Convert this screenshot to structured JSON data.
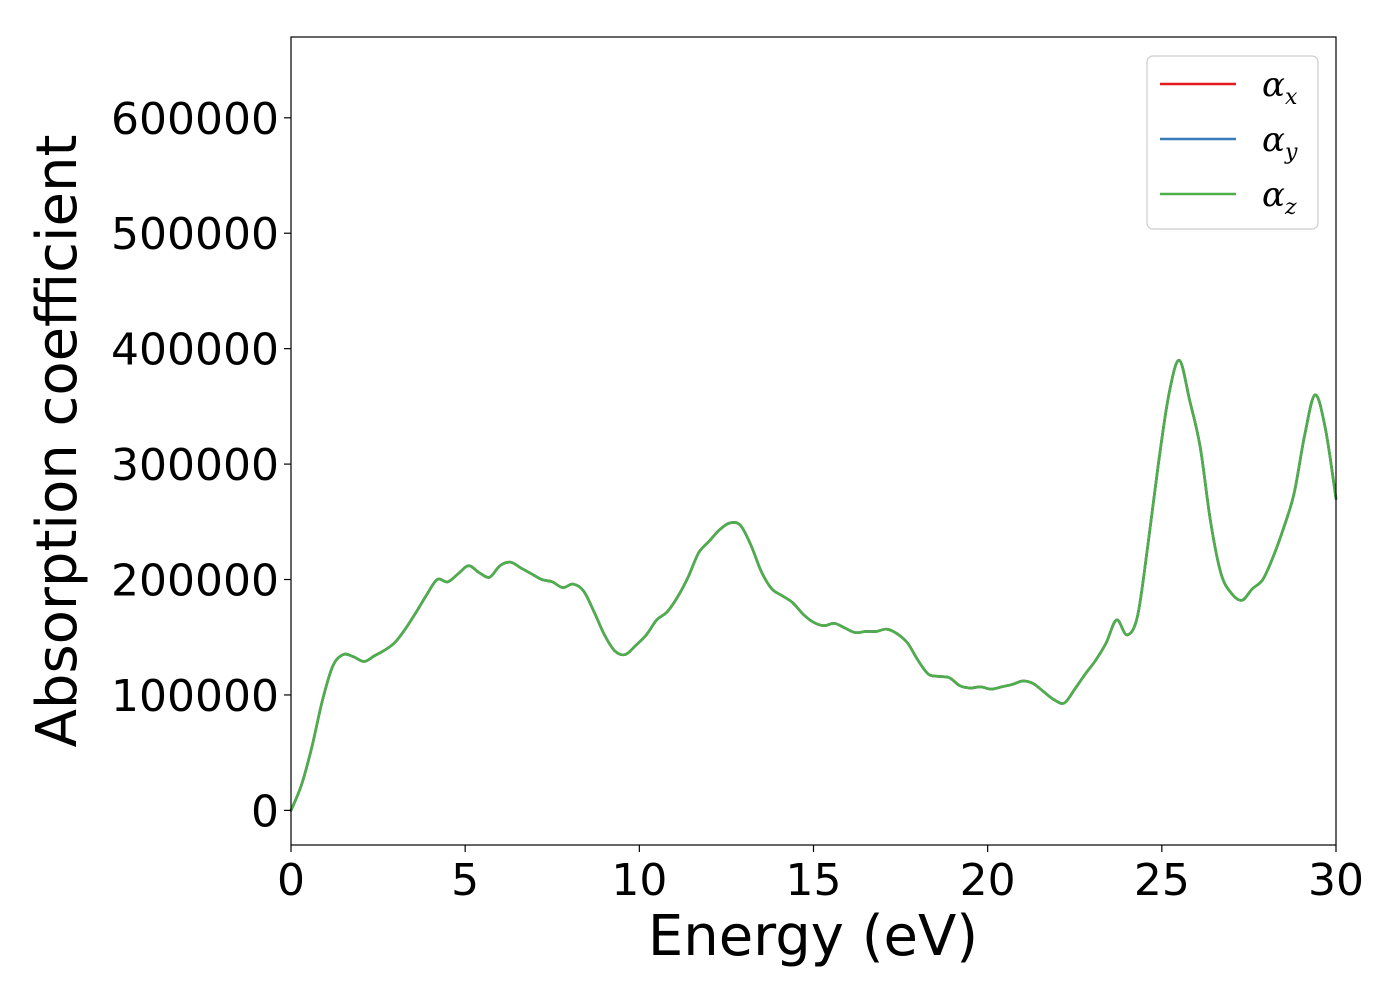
{
  "chart_data": {
    "type": "line",
    "title": "",
    "xlabel": "Energy (eV)",
    "ylabel": "Absorption coefficient",
    "xlim": [
      0,
      30
    ],
    "ylim": [
      -30000,
      670000
    ],
    "xticks": [
      0,
      5,
      10,
      15,
      20,
      25,
      30
    ],
    "yticks": [
      0,
      100000,
      200000,
      300000,
      400000,
      500000,
      600000
    ],
    "xtick_labels": [
      "0",
      "5",
      "10",
      "15",
      "20",
      "25",
      "30"
    ],
    "ytick_labels": [
      "0",
      "100000",
      "200000",
      "300000",
      "400000",
      "500000",
      "600000"
    ],
    "grid": false,
    "legend_position": "top-right",
    "x": [
      0,
      0.3,
      0.6,
      0.9,
      1.2,
      1.5,
      1.8,
      2.1,
      2.4,
      2.7,
      3.0,
      3.3,
      3.6,
      3.9,
      4.2,
      4.5,
      4.8,
      5.1,
      5.4,
      5.7,
      6.0,
      6.3,
      6.6,
      6.9,
      7.2,
      7.5,
      7.8,
      8.1,
      8.4,
      8.7,
      9.0,
      9.3,
      9.6,
      9.9,
      10.2,
      10.5,
      10.8,
      11.1,
      11.4,
      11.7,
      12.0,
      12.3,
      12.6,
      12.9,
      13.2,
      13.5,
      13.8,
      14.1,
      14.4,
      14.7,
      15.0,
      15.3,
      15.6,
      15.9,
      16.2,
      16.5,
      16.8,
      17.1,
      17.4,
      17.7,
      18.0,
      18.3,
      18.6,
      18.9,
      19.2,
      19.5,
      19.8,
      20.1,
      20.4,
      20.7,
      21.0,
      21.3,
      21.6,
      21.9,
      22.2,
      22.5,
      22.8,
      23.1,
      23.4,
      23.7,
      24.0,
      24.3,
      24.6,
      24.9,
      25.2,
      25.5,
      25.8,
      26.1,
      26.4,
      26.7,
      27.0,
      27.3,
      27.6,
      27.9,
      28.2,
      28.5,
      28.8,
      29.1,
      29.4,
      29.7,
      30.0
    ],
    "series": [
      {
        "name": "αx",
        "color": "#e41a1c",
        "values": [
          0,
          22000,
          55000,
          95000,
          125000,
          135000,
          133000,
          129000,
          134000,
          139000,
          146000,
          158000,
          172000,
          187000,
          200000,
          198000,
          205000,
          212000,
          206000,
          202000,
          212000,
          215000,
          210000,
          205000,
          200000,
          198000,
          193000,
          196000,
          190000,
          172000,
          152000,
          138000,
          135000,
          143000,
          152000,
          165000,
          172000,
          185000,
          202000,
          223000,
          233000,
          243000,
          249000,
          247000,
          230000,
          207000,
          192000,
          186000,
          180000,
          170000,
          163000,
          160000,
          162000,
          158000,
          154000,
          155000,
          155000,
          157000,
          153000,
          145000,
          130000,
          118000,
          116000,
          115000,
          108000,
          106000,
          107000,
          105000,
          107000,
          109000,
          112000,
          110000,
          103000,
          96000,
          93000,
          105000,
          118000,
          130000,
          145000,
          165000,
          152000,
          168000,
          230000,
          300000,
          360000,
          390000,
          355000,
          315000,
          250000,
          205000,
          188000,
          182000,
          192000,
          200000,
          220000,
          245000,
          275000,
          325000,
          360000,
          330000,
          270000
        ]
      },
      {
        "name": "αy",
        "color": "#377eb8",
        "values": [
          0,
          22000,
          55000,
          95000,
          125000,
          135000,
          133000,
          129000,
          134000,
          139000,
          146000,
          158000,
          172000,
          187000,
          200000,
          198000,
          205000,
          212000,
          206000,
          202000,
          212000,
          215000,
          210000,
          205000,
          200000,
          198000,
          193000,
          196000,
          190000,
          172000,
          152000,
          138000,
          135000,
          143000,
          152000,
          165000,
          172000,
          185000,
          202000,
          223000,
          233000,
          243000,
          249000,
          247000,
          230000,
          207000,
          192000,
          186000,
          180000,
          170000,
          163000,
          160000,
          162000,
          158000,
          154000,
          155000,
          155000,
          157000,
          153000,
          145000,
          130000,
          118000,
          116000,
          115000,
          108000,
          106000,
          107000,
          105000,
          107000,
          109000,
          112000,
          110000,
          103000,
          96000,
          93000,
          105000,
          118000,
          130000,
          145000,
          165000,
          152000,
          168000,
          230000,
          300000,
          360000,
          390000,
          355000,
          315000,
          250000,
          205000,
          188000,
          182000,
          192000,
          200000,
          220000,
          245000,
          275000,
          325000,
          360000,
          330000,
          270000
        ]
      },
      {
        "name": "αz",
        "color": "#4daf4a",
        "values": [
          0,
          22000,
          55000,
          95000,
          125000,
          135000,
          133000,
          129000,
          134000,
          139000,
          146000,
          158000,
          172000,
          187000,
          200000,
          198000,
          205000,
          212000,
          206000,
          202000,
          212000,
          215000,
          210000,
          205000,
          200000,
          198000,
          193000,
          196000,
          190000,
          172000,
          152000,
          138000,
          135000,
          143000,
          152000,
          165000,
          172000,
          185000,
          202000,
          223000,
          233000,
          243000,
          249000,
          247000,
          230000,
          207000,
          192000,
          186000,
          180000,
          170000,
          163000,
          160000,
          162000,
          158000,
          154000,
          155000,
          155000,
          157000,
          153000,
          145000,
          130000,
          118000,
          116000,
          115000,
          108000,
          106000,
          107000,
          105000,
          107000,
          109000,
          112000,
          110000,
          103000,
          96000,
          93000,
          105000,
          118000,
          130000,
          145000,
          165000,
          152000,
          168000,
          230000,
          300000,
          360000,
          390000,
          355000,
          315000,
          250000,
          205000,
          188000,
          182000,
          192000,
          200000,
          220000,
          245000,
          275000,
          325000,
          360000,
          330000,
          270000
        ]
      }
    ]
  }
}
